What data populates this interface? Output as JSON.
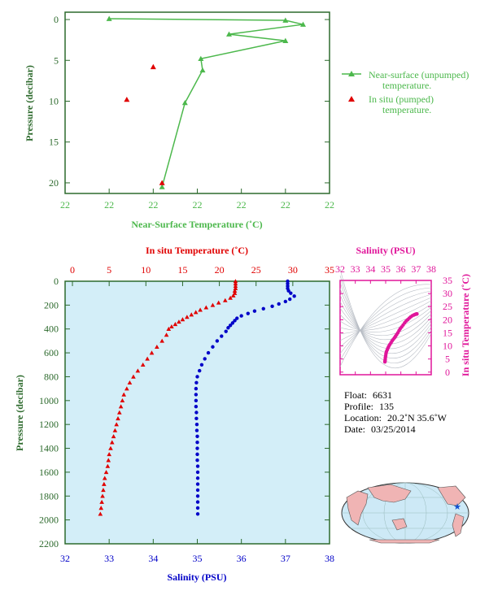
{
  "chart_data": [
    {
      "type": "line",
      "xlabel": "Near-Surface Temperature (˚C)",
      "ylabel": "Pressure (decibar)",
      "x_tick_labels": [
        "22",
        "22",
        "22",
        "22",
        "22",
        "22",
        "22"
      ],
      "y_ticks": [
        0,
        5,
        10,
        15,
        20
      ],
      "xlim": [
        21.7,
        23.2
      ],
      "ylim": [
        21.3,
        -0.9
      ],
      "grid": false,
      "legend_position": "right",
      "series": [
        {
          "name": "Near-surface (unpumped) temperature.",
          "color": "#4cb84c",
          "marker": "triangle",
          "points": [
            [
              21.95,
              -0.1
            ],
            [
              22.95,
              0.1
            ],
            [
              23.05,
              0.6
            ],
            [
              22.63,
              1.8
            ],
            [
              22.95,
              2.6
            ],
            [
              22.47,
              4.8
            ],
            [
              22.48,
              6.2
            ],
            [
              22.38,
              10.2
            ],
            [
              22.25,
              20.5
            ]
          ]
        },
        {
          "name": "In situ (pumped) temperature.",
          "color": "#e00000",
          "marker": "triangle",
          "points": [
            [
              22.2,
              5.8
            ],
            [
              22.05,
              9.8
            ],
            [
              22.25,
              20.0
            ]
          ]
        }
      ]
    },
    {
      "type": "scatter",
      "xlabel_top": "In situ Temperature (˚C)",
      "xlabel_bottom": "Salinity (PSU)",
      "ylabel": "Pressure (decibar)",
      "temperature_ticks": [
        0,
        5,
        10,
        15,
        20,
        25,
        30,
        35
      ],
      "salinity_ticks": [
        32,
        33,
        34,
        35,
        36,
        37,
        38
      ],
      "y_ticks": [
        0,
        200,
        400,
        600,
        800,
        1000,
        1200,
        1400,
        1600,
        1800,
        2000,
        2200
      ],
      "temperature_lim": [
        -1,
        35
      ],
      "salinity_lim": [
        32,
        38
      ],
      "ylim": [
        2200,
        0
      ],
      "background": "#d3eef8",
      "series": [
        {
          "name": "In situ Temperature (˚C)",
          "axis": "top",
          "color": "#e00000",
          "marker": "triangle",
          "points": [
            [
              22.2,
              0
            ],
            [
              22.2,
              20
            ],
            [
              22.2,
              40
            ],
            [
              22.2,
              60
            ],
            [
              22.1,
              80
            ],
            [
              22.1,
              100
            ],
            [
              21.9,
              120
            ],
            [
              21.5,
              140
            ],
            [
              20.8,
              160
            ],
            [
              19.9,
              180
            ],
            [
              19.1,
              200
            ],
            [
              18.2,
              220
            ],
            [
              17.4,
              240
            ],
            [
              16.8,
              260
            ],
            [
              16.2,
              280
            ],
            [
              15.6,
              300
            ],
            [
              15.0,
              320
            ],
            [
              14.5,
              340
            ],
            [
              14.0,
              360
            ],
            [
              13.5,
              380
            ],
            [
              13.1,
              400
            ],
            [
              12.8,
              450
            ],
            [
              12.2,
              500
            ],
            [
              11.5,
              550
            ],
            [
              10.8,
              600
            ],
            [
              10.2,
              650
            ],
            [
              9.6,
              700
            ],
            [
              8.9,
              750
            ],
            [
              8.3,
              800
            ],
            [
              7.8,
              850
            ],
            [
              7.4,
              900
            ],
            [
              7.0,
              950
            ],
            [
              6.8,
              1000
            ],
            [
              6.6,
              1050
            ],
            [
              6.4,
              1100
            ],
            [
              6.2,
              1150
            ],
            [
              6.0,
              1200
            ],
            [
              5.8,
              1250
            ],
            [
              5.6,
              1300
            ],
            [
              5.4,
              1350
            ],
            [
              5.2,
              1400
            ],
            [
              5.0,
              1450
            ],
            [
              4.9,
              1500
            ],
            [
              4.8,
              1550
            ],
            [
              4.6,
              1600
            ],
            [
              4.4,
              1650
            ],
            [
              4.3,
              1700
            ],
            [
              4.2,
              1750
            ],
            [
              4.1,
              1800
            ],
            [
              4.0,
              1850
            ],
            [
              3.9,
              1900
            ],
            [
              3.8,
              1950
            ]
          ]
        },
        {
          "name": "Salinity (PSU)",
          "axis": "bottom",
          "color": "#0000c8",
          "marker": "circle",
          "points": [
            [
              37.05,
              0
            ],
            [
              37.05,
              20
            ],
            [
              37.05,
              40
            ],
            [
              37.05,
              60
            ],
            [
              37.07,
              80
            ],
            [
              37.12,
              100
            ],
            [
              37.2,
              125
            ],
            [
              37.1,
              150
            ],
            [
              37.0,
              170
            ],
            [
              36.85,
              190
            ],
            [
              36.7,
              210
            ],
            [
              36.5,
              230
            ],
            [
              36.3,
              250
            ],
            [
              36.15,
              270
            ],
            [
              36.0,
              290
            ],
            [
              35.9,
              310
            ],
            [
              35.85,
              330
            ],
            [
              35.8,
              350
            ],
            [
              35.75,
              370
            ],
            [
              35.7,
              390
            ],
            [
              35.65,
              420
            ],
            [
              35.55,
              460
            ],
            [
              35.45,
              500
            ],
            [
              35.35,
              550
            ],
            [
              35.25,
              600
            ],
            [
              35.17,
              650
            ],
            [
              35.1,
              700
            ],
            [
              35.05,
              750
            ],
            [
              35.0,
              800
            ],
            [
              34.98,
              850
            ],
            [
              34.97,
              900
            ],
            [
              34.97,
              950
            ],
            [
              34.97,
              1000
            ],
            [
              34.97,
              1050
            ],
            [
              34.98,
              1100
            ],
            [
              34.98,
              1150
            ],
            [
              34.99,
              1200
            ],
            [
              34.99,
              1250
            ],
            [
              35.0,
              1300
            ],
            [
              35.0,
              1350
            ],
            [
              35.0,
              1400
            ],
            [
              35.0,
              1450
            ],
            [
              35.0,
              1500
            ],
            [
              35.01,
              1550
            ],
            [
              35.01,
              1600
            ],
            [
              35.01,
              1650
            ],
            [
              35.01,
              1700
            ],
            [
              35.01,
              1750
            ],
            [
              35.01,
              1800
            ],
            [
              35.01,
              1850
            ],
            [
              35.01,
              1900
            ],
            [
              35.01,
              1950
            ]
          ]
        }
      ]
    },
    {
      "type": "scatter",
      "xlabel": "Salinity (PSU)",
      "ylabel": "In situ Temperature (˚C)",
      "x_ticks": [
        32,
        33,
        34,
        35,
        36,
        37,
        38
      ],
      "y_ticks": [
        0,
        5,
        10,
        15,
        20,
        25,
        30,
        35
      ],
      "xlim": [
        32,
        38
      ],
      "ylim": [
        -1,
        35
      ],
      "color": "#e0169a",
      "points": [
        [
          34.95,
          3.9
        ],
        [
          34.96,
          4.3
        ],
        [
          34.97,
          4.8
        ],
        [
          34.98,
          5.5
        ],
        [
          35.0,
          6.2
        ],
        [
          35.02,
          7.0
        ],
        [
          35.05,
          7.8
        ],
        [
          35.1,
          8.5
        ],
        [
          35.15,
          9.2
        ],
        [
          35.2,
          9.8
        ],
        [
          35.27,
          10.5
        ],
        [
          35.35,
          11.2
        ],
        [
          35.42,
          11.9
        ],
        [
          35.5,
          12.5
        ],
        [
          35.58,
          13.1
        ],
        [
          35.65,
          13.7
        ],
        [
          35.72,
          14.3
        ],
        [
          35.8,
          15.0
        ],
        [
          35.88,
          15.8
        ],
        [
          35.95,
          16.5
        ],
        [
          36.05,
          17.2
        ],
        [
          36.15,
          18.0
        ],
        [
          36.25,
          18.8
        ],
        [
          36.35,
          19.5
        ],
        [
          36.45,
          20.0
        ],
        [
          36.55,
          20.6
        ],
        [
          36.65,
          21.1
        ],
        [
          36.75,
          21.5
        ],
        [
          36.85,
          21.8
        ],
        [
          36.92,
          22.0
        ],
        [
          36.98,
          22.1
        ],
        [
          37.02,
          22.2
        ],
        [
          37.05,
          22.2
        ],
        [
          37.06,
          22.2
        ]
      ]
    }
  ],
  "info": {
    "float_label": "Float:",
    "float_value": "6631",
    "profile_label": "Profile:",
    "profile_value": "135",
    "location_label": "Location:",
    "location_value": "20.2˚N  35.6˚W",
    "date_label": "Date:",
    "date_value": "03/25/2014"
  },
  "map": {
    "float_marker": "★",
    "marker_color": "#1050d0",
    "ocean_color": "#cde9f6",
    "land_color": "#f0b4b4"
  },
  "colors": {
    "green": "#4cb84c",
    "axis_green": "#2d6a2d",
    "red": "#e00000",
    "blue": "#0000c8",
    "magenta": "#e0169a",
    "panel_bg": "#d3eef8"
  }
}
